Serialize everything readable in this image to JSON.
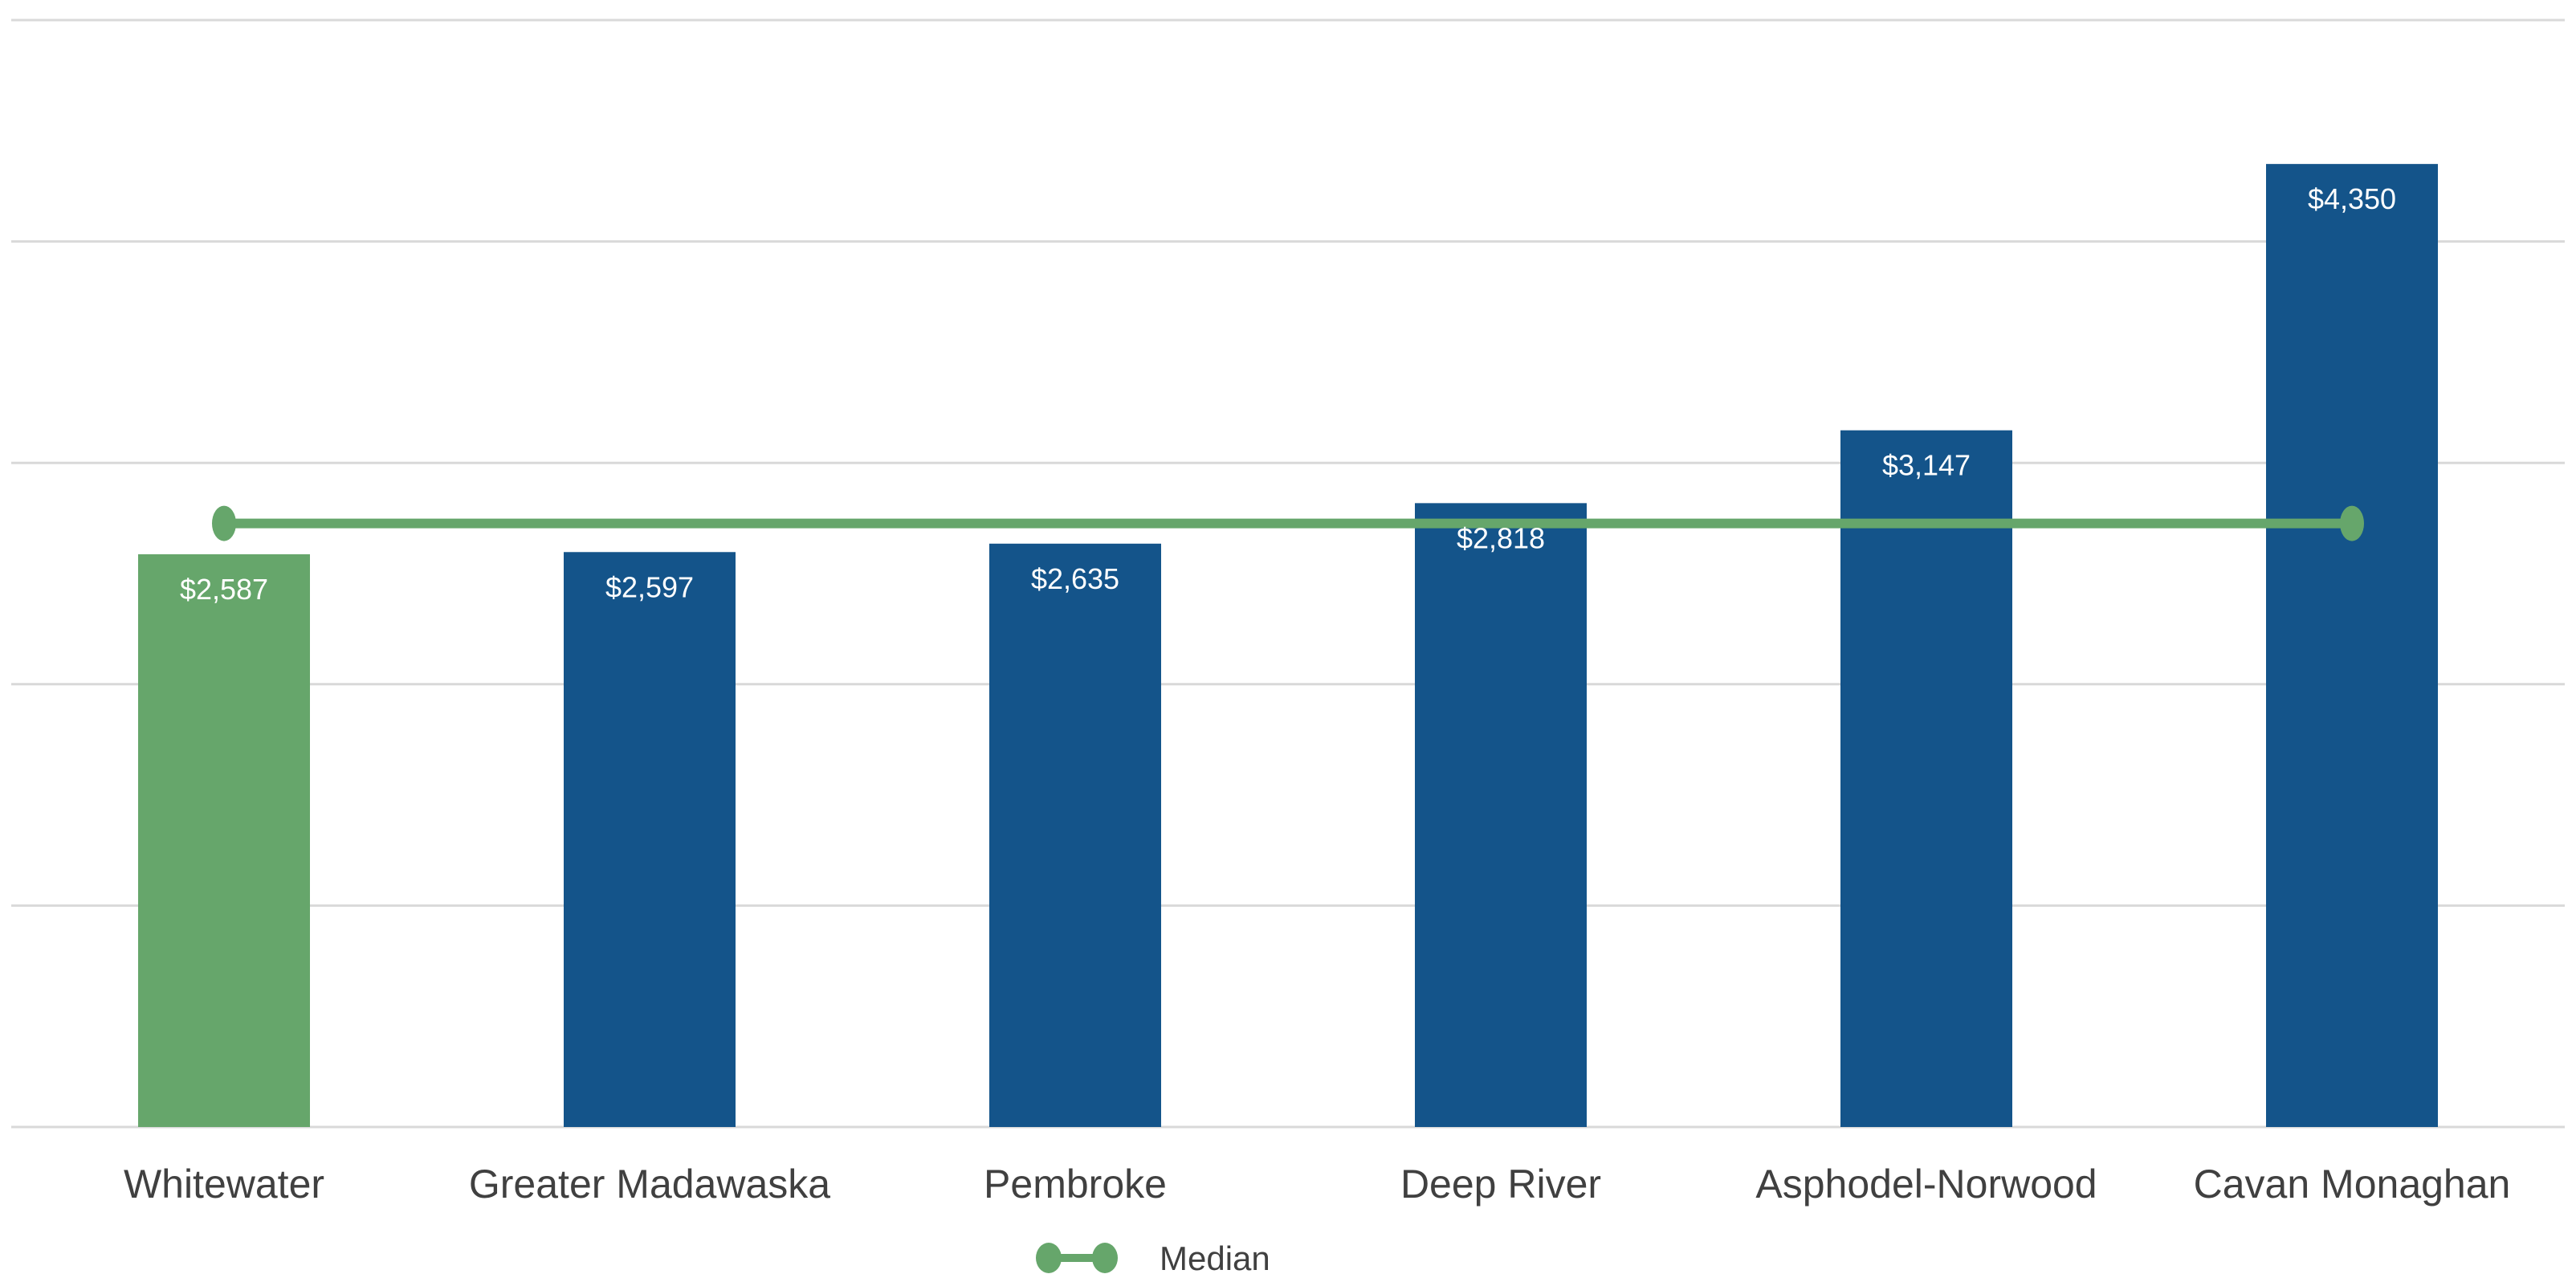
{
  "chart_data": {
    "type": "bar",
    "categories": [
      "Whitewater",
      "Greater Madawaska",
      "Pembroke",
      "Deep River",
      "Asphodel-Norwood",
      "Cavan Monaghan"
    ],
    "values": [
      2587,
      2597,
      2635,
      2818,
      3147,
      4350
    ],
    "data_labels": [
      "$2,587",
      "$2,597",
      "$2,635",
      "$2,818",
      "$3,147",
      "$4,350"
    ],
    "highlight_category": "Whitewater",
    "median": {
      "name": "Median",
      "value": 2726.5
    },
    "ylim": [
      0,
      5000
    ],
    "y_gridlines": [
      0,
      1000,
      2000,
      3000,
      4000,
      5000
    ],
    "y_tick_labels_visible": false,
    "grid": true,
    "legend_position": "bottom-center",
    "title": "",
    "xlabel": "",
    "ylabel": "",
    "colors": {
      "bar": "#14548a",
      "highlight_bar": "#66a66b",
      "median_line": "#66a66b",
      "grid": "#d9d9d9",
      "text": "#404040",
      "data_label_text": "#ffffff"
    }
  }
}
